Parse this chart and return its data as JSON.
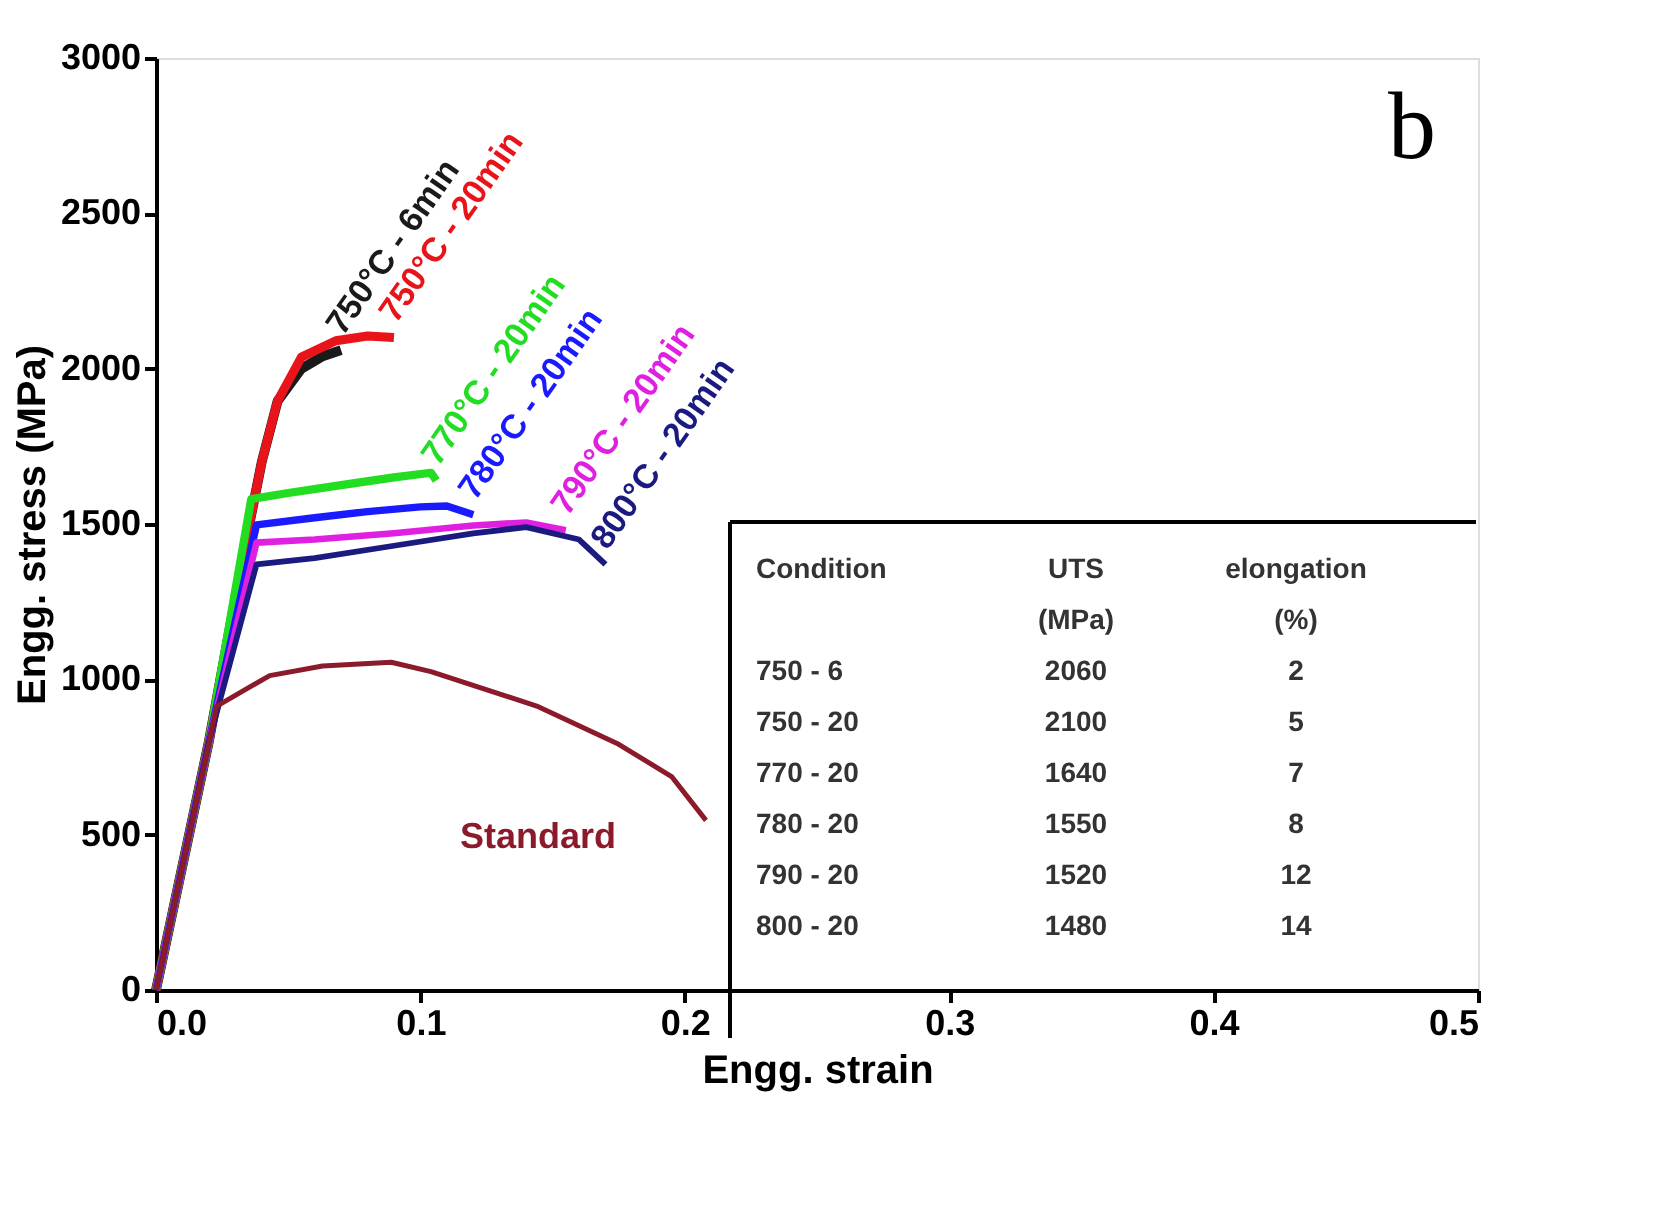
{
  "chart_data": {
    "type": "line",
    "xlabel": "Engg. strain",
    "ylabel": "Engg. stress (MPa)",
    "xlim": [
      0,
      0.5
    ],
    "xticks": [
      {
        "value": 0,
        "label": "0.0"
      },
      0.1,
      0.2,
      0.3,
      0.4,
      0.5
    ],
    "ylim": [
      0,
      3000
    ],
    "yticks": [
      0,
      500,
      1000,
      1500,
      2000,
      2500,
      3000
    ],
    "grid": false,
    "marker": "none",
    "line_style": "solid",
    "series": [
      {
        "name": "750°C - 6min",
        "color": "#1a1a1a",
        "x": [
          0,
          0.02,
          0.033,
          0.04,
          0.046,
          0.055,
          0.063,
          0.07
        ],
        "values": [
          0,
          800,
          1400,
          1700,
          1896,
          2000,
          2040,
          2060
        ]
      },
      {
        "name": "750°C - 20min",
        "color": "#e8141a",
        "x": [
          0,
          0.02,
          0.033,
          0.04,
          0.046,
          0.055,
          0.068,
          0.08,
          0.09
        ],
        "values": [
          0,
          800,
          1400,
          1700,
          1896,
          2037,
          2090,
          2105,
          2100
        ]
      },
      {
        "name": "770°C - 20min",
        "color": "#22dd22",
        "x": [
          0,
          0.02,
          0.036,
          0.05,
          0.07,
          0.09,
          0.104,
          0.106
        ],
        "values": [
          0,
          800,
          1580,
          1600,
          1625,
          1650,
          1665,
          1640
        ]
      },
      {
        "name": "780°C - 20min",
        "color": "#1a1aff",
        "x": [
          0,
          0.02,
          0.038,
          0.06,
          0.08,
          0.1,
          0.11,
          0.12
        ],
        "values": [
          0,
          800,
          1497,
          1520,
          1540,
          1555,
          1558,
          1530
        ]
      },
      {
        "name": "790°C - 20min",
        "color": "#e020e0",
        "x": [
          0,
          0.02,
          0.038,
          0.06,
          0.09,
          0.12,
          0.14,
          0.155
        ],
        "values": [
          0,
          800,
          1440,
          1450,
          1470,
          1495,
          1505,
          1480
        ]
      },
      {
        "name": "800°C - 20min",
        "color": "#1a1a80",
        "x": [
          0,
          0.02,
          0.038,
          0.06,
          0.09,
          0.12,
          0.14,
          0.16,
          0.17
        ],
        "values": [
          0,
          800,
          1370,
          1390,
          1430,
          1470,
          1490,
          1450,
          1370
        ]
      },
      {
        "name": "Standard",
        "color": "#8b1a2b",
        "x": [
          0,
          0.023,
          0.043,
          0.063,
          0.089,
          0.104,
          0.144,
          0.175,
          0.195,
          0.208
        ],
        "values": [
          0,
          914,
          1012,
          1043,
          1055,
          1025,
          914,
          791,
          687,
          546
        ]
      }
    ],
    "annotations": [
      "b",
      "Condition",
      "UTS",
      "elongation",
      "(MPa)",
      "(%)",
      "750 - 6",
      "2060",
      "2",
      "750 - 20",
      "2100",
      "5",
      "770 - 20",
      "1640",
      "7",
      "780 - 20",
      "1550",
      "8",
      "790 - 20",
      "1520",
      "12",
      "800 - 20",
      "1480",
      "14"
    ]
  }
}
